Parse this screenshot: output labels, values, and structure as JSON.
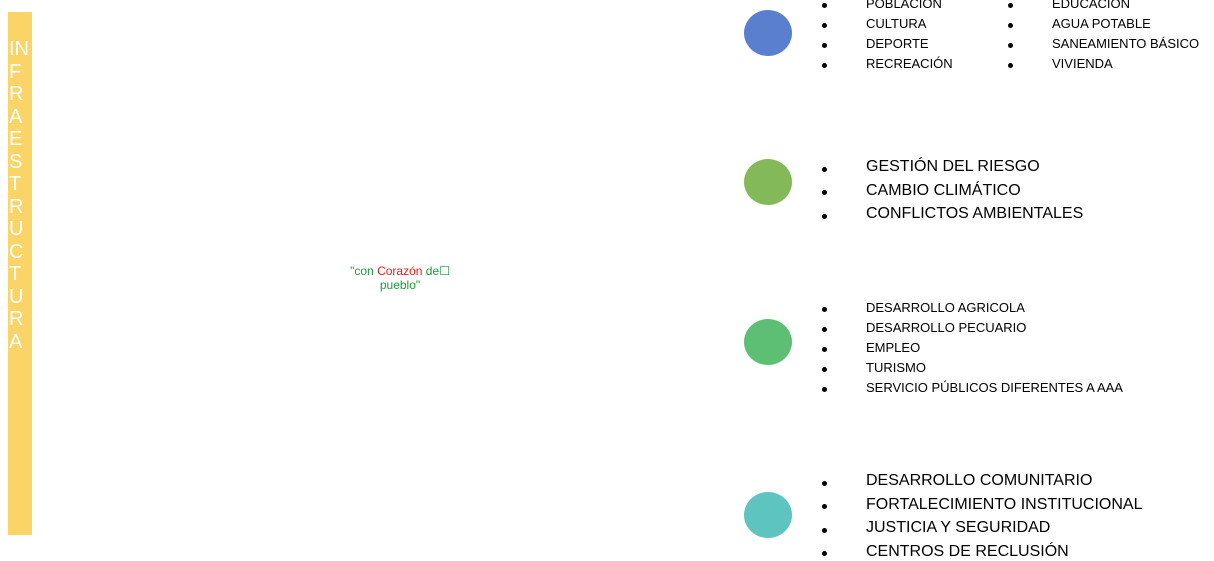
{
  "sidebar_text": "INFRAESTRUCTURA",
  "slogan": [
    "\"con",
    "Corazón",
    "de☐",
    "pueblo\""
  ],
  "groups": [
    {
      "columns": [
        [
          "POBLACIÓN",
          "CULTURA",
          "DEPORTE",
          "RECREACIÓN"
        ],
        [
          "EDUCACIÓN",
          "AGUA POTABLE",
          "SANEAMIENTO BÁSICO",
          "VIVIENDA"
        ]
      ]
    },
    {
      "columns": [
        [
          "GESTIÓN DEL RIESGO",
          "CAMBIO CLIMÁTICO",
          "CONFLICTOS AMBIENTALES"
        ]
      ]
    },
    {
      "columns": [
        [
          "DESARROLLO AGRICOLA",
          "DESARROLLO PECUARIO",
          "EMPLEO",
          "TURISMO",
          "SERVICIO PÚBLICOS DIFERENTES A AAA"
        ]
      ]
    },
    {
      "columns": [
        [
          "DESARROLLO COMUNITARIO",
          "FORTALECIMIENTO INSTITUCIONAL",
          "JUSTICIA Y SEGURIDAD",
          "CENTROS DE RECLUSIÓN"
        ]
      ]
    }
  ]
}
